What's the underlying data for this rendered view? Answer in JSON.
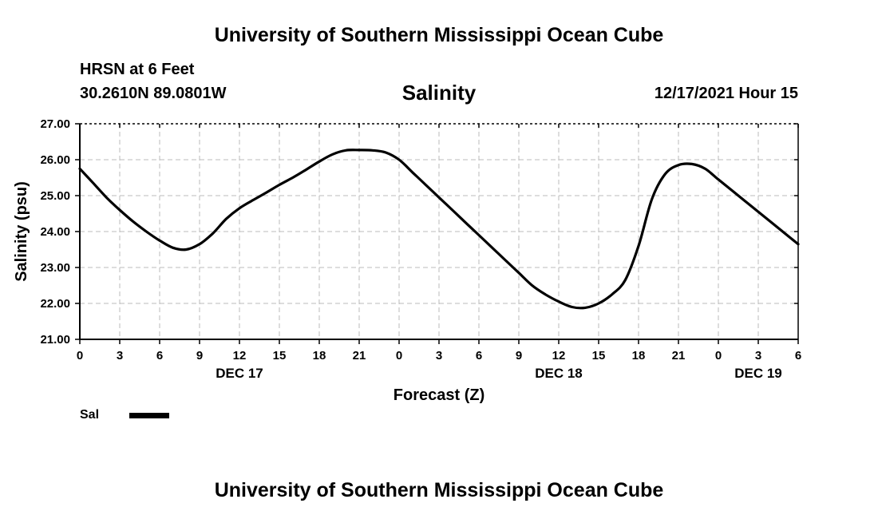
{
  "header": {
    "title": "University of Southern Mississippi Ocean Cube",
    "station": "HRSN at 6 Feet",
    "coords": "30.2610N  89.0801W",
    "chart_title": "Salinity",
    "timestamp": "12/17/2021 Hour 15"
  },
  "footer": {
    "title": "University of Southern Mississippi Ocean Cube"
  },
  "legend": {
    "label": "Sal",
    "color": "#000000"
  },
  "chart_data": {
    "type": "line",
    "title": "Salinity",
    "xlabel": "Forecast (Z)",
    "ylabel": "Salinity (psu)",
    "xlim": [
      0,
      54
    ],
    "ylim": [
      21.0,
      27.0
    ],
    "x_tick_values": [
      0,
      3,
      6,
      9,
      12,
      15,
      18,
      21,
      24,
      27,
      30,
      33,
      36,
      39,
      42,
      45,
      48,
      51,
      54
    ],
    "x_tick_labels": [
      "0",
      "3",
      "6",
      "9",
      "12",
      "15",
      "18",
      "21",
      "0",
      "3",
      "6",
      "9",
      "12",
      "15",
      "18",
      "21",
      "0",
      "3",
      "6"
    ],
    "y_tick_values": [
      21,
      22,
      23,
      24,
      25,
      26,
      27
    ],
    "y_tick_labels": [
      "21.00",
      "22.00",
      "23.00",
      "24.00",
      "25.00",
      "26.00",
      "27.00"
    ],
    "day_labels": [
      {
        "x": 12,
        "label": "DEC 17"
      },
      {
        "x": 36,
        "label": "DEC 18"
      },
      {
        "x": 51,
        "label": "DEC 19"
      }
    ],
    "grid": true,
    "series": [
      {
        "name": "Sal",
        "color": "#000000",
        "x": [
          0,
          1,
          2,
          3,
          4,
          5,
          6,
          7,
          8,
          9,
          10,
          11,
          12,
          13,
          14,
          15,
          16,
          17,
          18,
          19,
          20,
          21,
          22,
          23,
          24,
          25,
          26,
          27,
          28,
          29,
          30,
          31,
          32,
          33,
          34,
          35,
          36,
          37,
          38,
          39,
          40,
          41,
          42,
          43,
          44,
          45,
          46,
          47,
          48,
          49,
          50,
          51,
          52,
          53,
          54
        ],
        "y": [
          25.75,
          25.35,
          24.95,
          24.6,
          24.28,
          24.0,
          23.75,
          23.55,
          23.5,
          23.65,
          23.95,
          24.35,
          24.65,
          24.87,
          25.08,
          25.3,
          25.5,
          25.72,
          25.95,
          26.15,
          26.26,
          26.27,
          26.26,
          26.2,
          26.0,
          25.65,
          25.3,
          24.95,
          24.6,
          24.25,
          23.9,
          23.55,
          23.2,
          22.85,
          22.5,
          22.25,
          22.05,
          21.9,
          21.88,
          22.0,
          22.25,
          22.65,
          23.6,
          24.9,
          25.6,
          25.85,
          25.88,
          25.75,
          25.45,
          25.15,
          24.85,
          24.55,
          24.25,
          23.95,
          23.65
        ]
      }
    ]
  }
}
